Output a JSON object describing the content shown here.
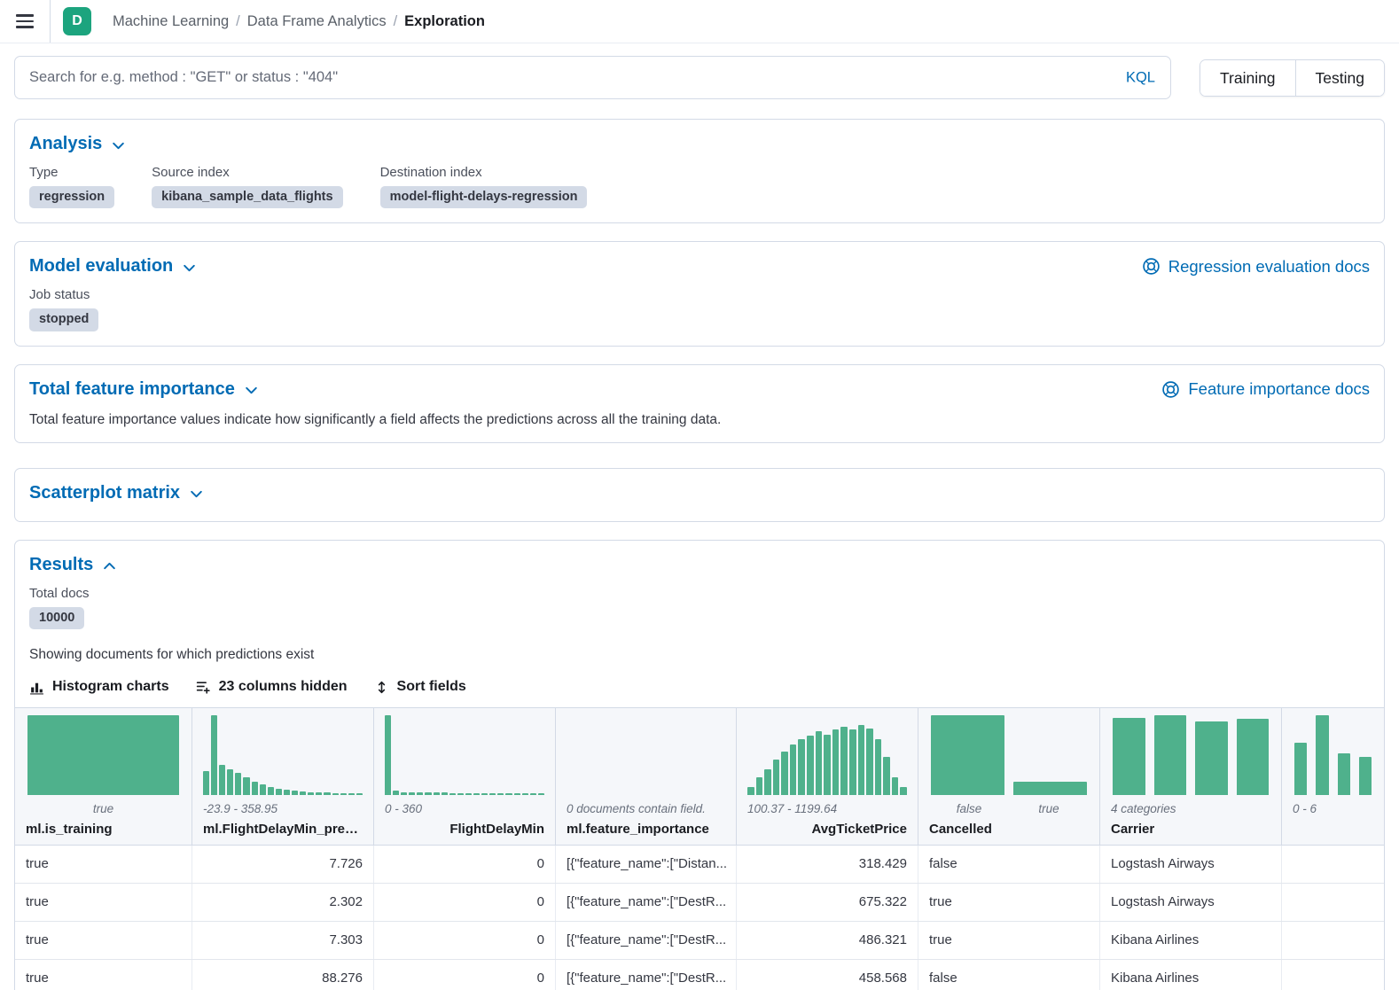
{
  "colors": {
    "accent_blue": "#006BB4",
    "histogram_green": "#4FB18C",
    "badge_bg": "#D3DAE6",
    "avatar_bg": "#1CA47E"
  },
  "icons": {
    "menu-icon": "≡",
    "chevron-down-icon": "⌄",
    "chevron-up-icon": "⌃",
    "docs-icon": "◎",
    "histogram-icon": "▮▮▮",
    "columns-icon": "☰+",
    "sort-icon": "⇅"
  },
  "header": {
    "avatar_initial": "D",
    "breadcrumbs": [
      {
        "label": "Machine Learning"
      },
      {
        "label": "Data Frame Analytics"
      },
      {
        "label": "Exploration"
      }
    ]
  },
  "search": {
    "placeholder": "Search for e.g. method : \"GET\" or status : \"404\"",
    "kql": "KQL",
    "training": "Training",
    "testing": "Testing"
  },
  "panels": {
    "analysis": {
      "title": "Analysis",
      "fields": [
        {
          "label": "Type",
          "value": "regression"
        },
        {
          "label": "Source index",
          "value": "kibana_sample_data_flights"
        },
        {
          "label": "Destination index",
          "value": "model-flight-delays-regression"
        }
      ]
    },
    "model_evaluation": {
      "title": "Model evaluation",
      "docs_link": "Regression evaluation docs",
      "job_status_label": "Job status",
      "job_status_value": "stopped"
    },
    "feature_importance": {
      "title": "Total feature importance",
      "docs_link": "Feature importance docs",
      "description": "Total feature importance values indicate how significantly a field affects the predictions across all the training data."
    },
    "scatterplot": {
      "title": "Scatterplot matrix"
    },
    "results": {
      "title": "Results",
      "total_docs_label": "Total docs",
      "total_docs_value": "10000",
      "subtitle": "Showing documents for which predictions exist",
      "toolbar": {
        "histogram_label": "Histogram charts",
        "columns_label": "23 columns hidden",
        "sort_label": "Sort fields"
      }
    }
  },
  "grid": {
    "columns": [
      {
        "header": "ml.is_training",
        "align": "left",
        "range": "",
        "bar_labels": [
          "true"
        ],
        "bars": [
          100
        ]
      },
      {
        "header": "ml.FlightDelayMin_predicti",
        "align": "right",
        "range": "-23.9 - 358.95",
        "bars": [
          30,
          100,
          38,
          32,
          28,
          22,
          17,
          13,
          10,
          8,
          7,
          6,
          5,
          4,
          3,
          3,
          2,
          2,
          2,
          2
        ]
      },
      {
        "header": "FlightDelayMin",
        "align": "right",
        "range": "0 - 360",
        "bars": [
          100,
          6,
          4,
          4,
          3,
          3,
          3,
          3,
          2,
          2,
          2,
          2,
          2,
          2,
          2,
          2,
          2,
          2,
          2,
          2
        ]
      },
      {
        "header": "ml.feature_importance",
        "align": "left",
        "range": "0 documents contain field.",
        "bars": []
      },
      {
        "header": "AvgTicketPrice",
        "align": "right",
        "range": "100.37 - 1199.64",
        "bars": [
          10,
          22,
          32,
          45,
          55,
          64,
          70,
          75,
          80,
          76,
          82,
          86,
          82,
          88,
          84,
          70,
          48,
          22,
          10
        ]
      },
      {
        "header": "Cancelled",
        "align": "left",
        "range": "",
        "bar_labels": [
          "false",
          "true"
        ],
        "bars": [
          100,
          17
        ]
      },
      {
        "header": "Carrier",
        "align": "left",
        "range": "4 categories",
        "bars": [
          97,
          100,
          92,
          96
        ]
      },
      {
        "header": "",
        "align": "left",
        "range": "0 - 6",
        "bars": [
          66,
          100,
          52,
          48
        ]
      }
    ],
    "rows": [
      [
        "true",
        "7.726",
        "0",
        "[{\"feature_name\":[\"Distan...",
        "318.429",
        "false",
        "Logstash Airways",
        ""
      ],
      [
        "true",
        "2.302",
        "0",
        "[{\"feature_name\":[\"DestR...",
        "675.322",
        "true",
        "Logstash Airways",
        ""
      ],
      [
        "true",
        "7.303",
        "0",
        "[{\"feature_name\":[\"DestR...",
        "486.321",
        "true",
        "Kibana Airlines",
        ""
      ],
      [
        "true",
        "88.276",
        "0",
        "[{\"feature_name\":[\"DestR...",
        "458.568",
        "false",
        "Kibana Airlines",
        ""
      ],
      [
        "",
        "",
        "",
        "",
        "",
        "",
        "",
        ""
      ]
    ]
  }
}
